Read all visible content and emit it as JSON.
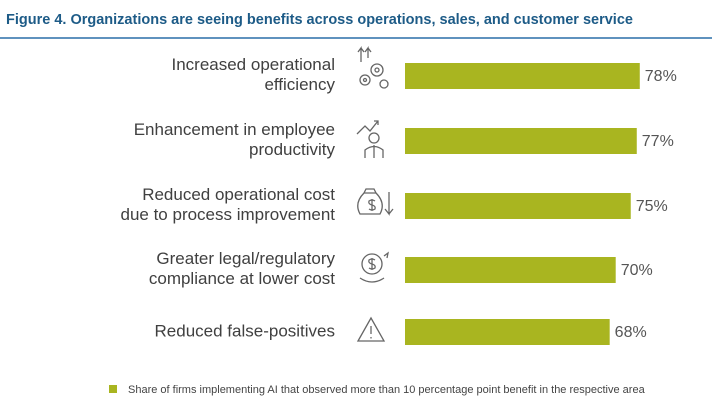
{
  "chart_data": {
    "type": "bar",
    "orientation": "horizontal",
    "title": "Figure 4. Organizations are seeing benefits across operations, sales, and customer service",
    "categories": [
      "Increased operational\nefficiency",
      "Enhancement in employee\nproductivity",
      "Reduced operational cost\ndue to process improvement",
      "Greater legal/regulatory\ncompliance at lower cost",
      "Reduced false-positives"
    ],
    "series": [
      {
        "name": "Share of firms implementing AI that observed more than 10 percentage point benefit in the respective area",
        "color": "#a9b520",
        "values": [
          78,
          77,
          75,
          70,
          68
        ],
        "value_labels": [
          "78%",
          "77%",
          "75%",
          "70%",
          "68%"
        ]
      }
    ]
  }
}
